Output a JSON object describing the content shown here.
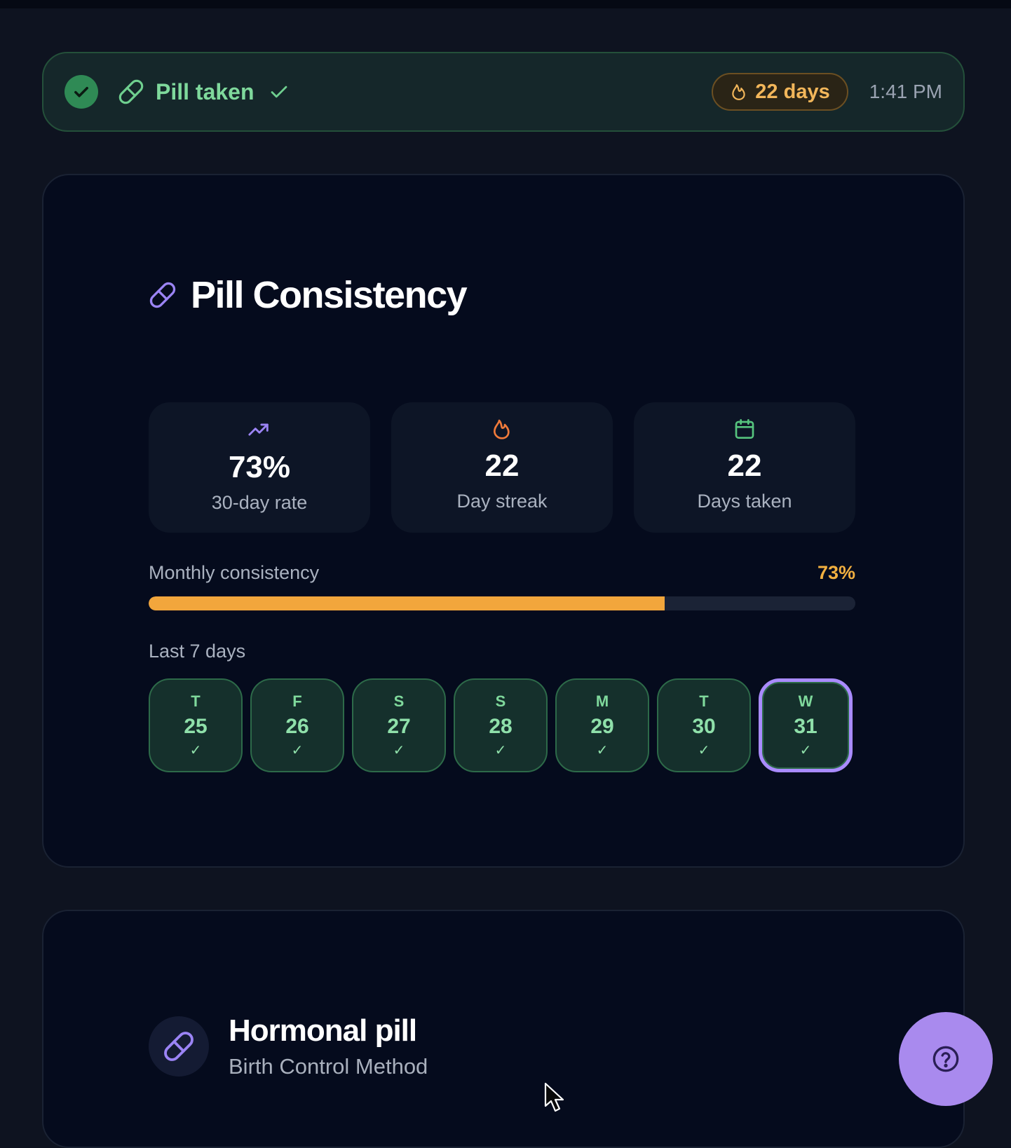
{
  "banner": {
    "title": "Pill taken",
    "streak": "22 days",
    "time": "1:41 PM"
  },
  "consistency": {
    "title": "Pill Consistency",
    "stats": [
      {
        "icon": "trending-up-icon",
        "value": "73%",
        "label": "30-day rate"
      },
      {
        "icon": "flame-icon",
        "value": "22",
        "label": "Day streak"
      },
      {
        "icon": "calendar-icon",
        "value": "22",
        "label": "Days taken"
      }
    ],
    "monthly": {
      "label": "Monthly consistency",
      "value_label": "73%",
      "percent": 73
    },
    "last7_label": "Last 7 days",
    "days": [
      {
        "dow": "T",
        "num": "25",
        "mark": "✓"
      },
      {
        "dow": "F",
        "num": "26",
        "mark": "✓"
      },
      {
        "dow": "S",
        "num": "27",
        "mark": "✓"
      },
      {
        "dow": "S",
        "num": "28",
        "mark": "✓"
      },
      {
        "dow": "M",
        "num": "29",
        "mark": "✓"
      },
      {
        "dow": "T",
        "num": "30",
        "mark": "✓"
      },
      {
        "dow": "W",
        "num": "31",
        "mark": "✓",
        "today": true
      }
    ]
  },
  "method": {
    "title": "Hormonal pill",
    "subtitle": "Birth Control Method"
  },
  "colors": {
    "accent_green": "#7fd99c",
    "accent_orange": "#f2a63c",
    "accent_purple": "#a98aee"
  }
}
